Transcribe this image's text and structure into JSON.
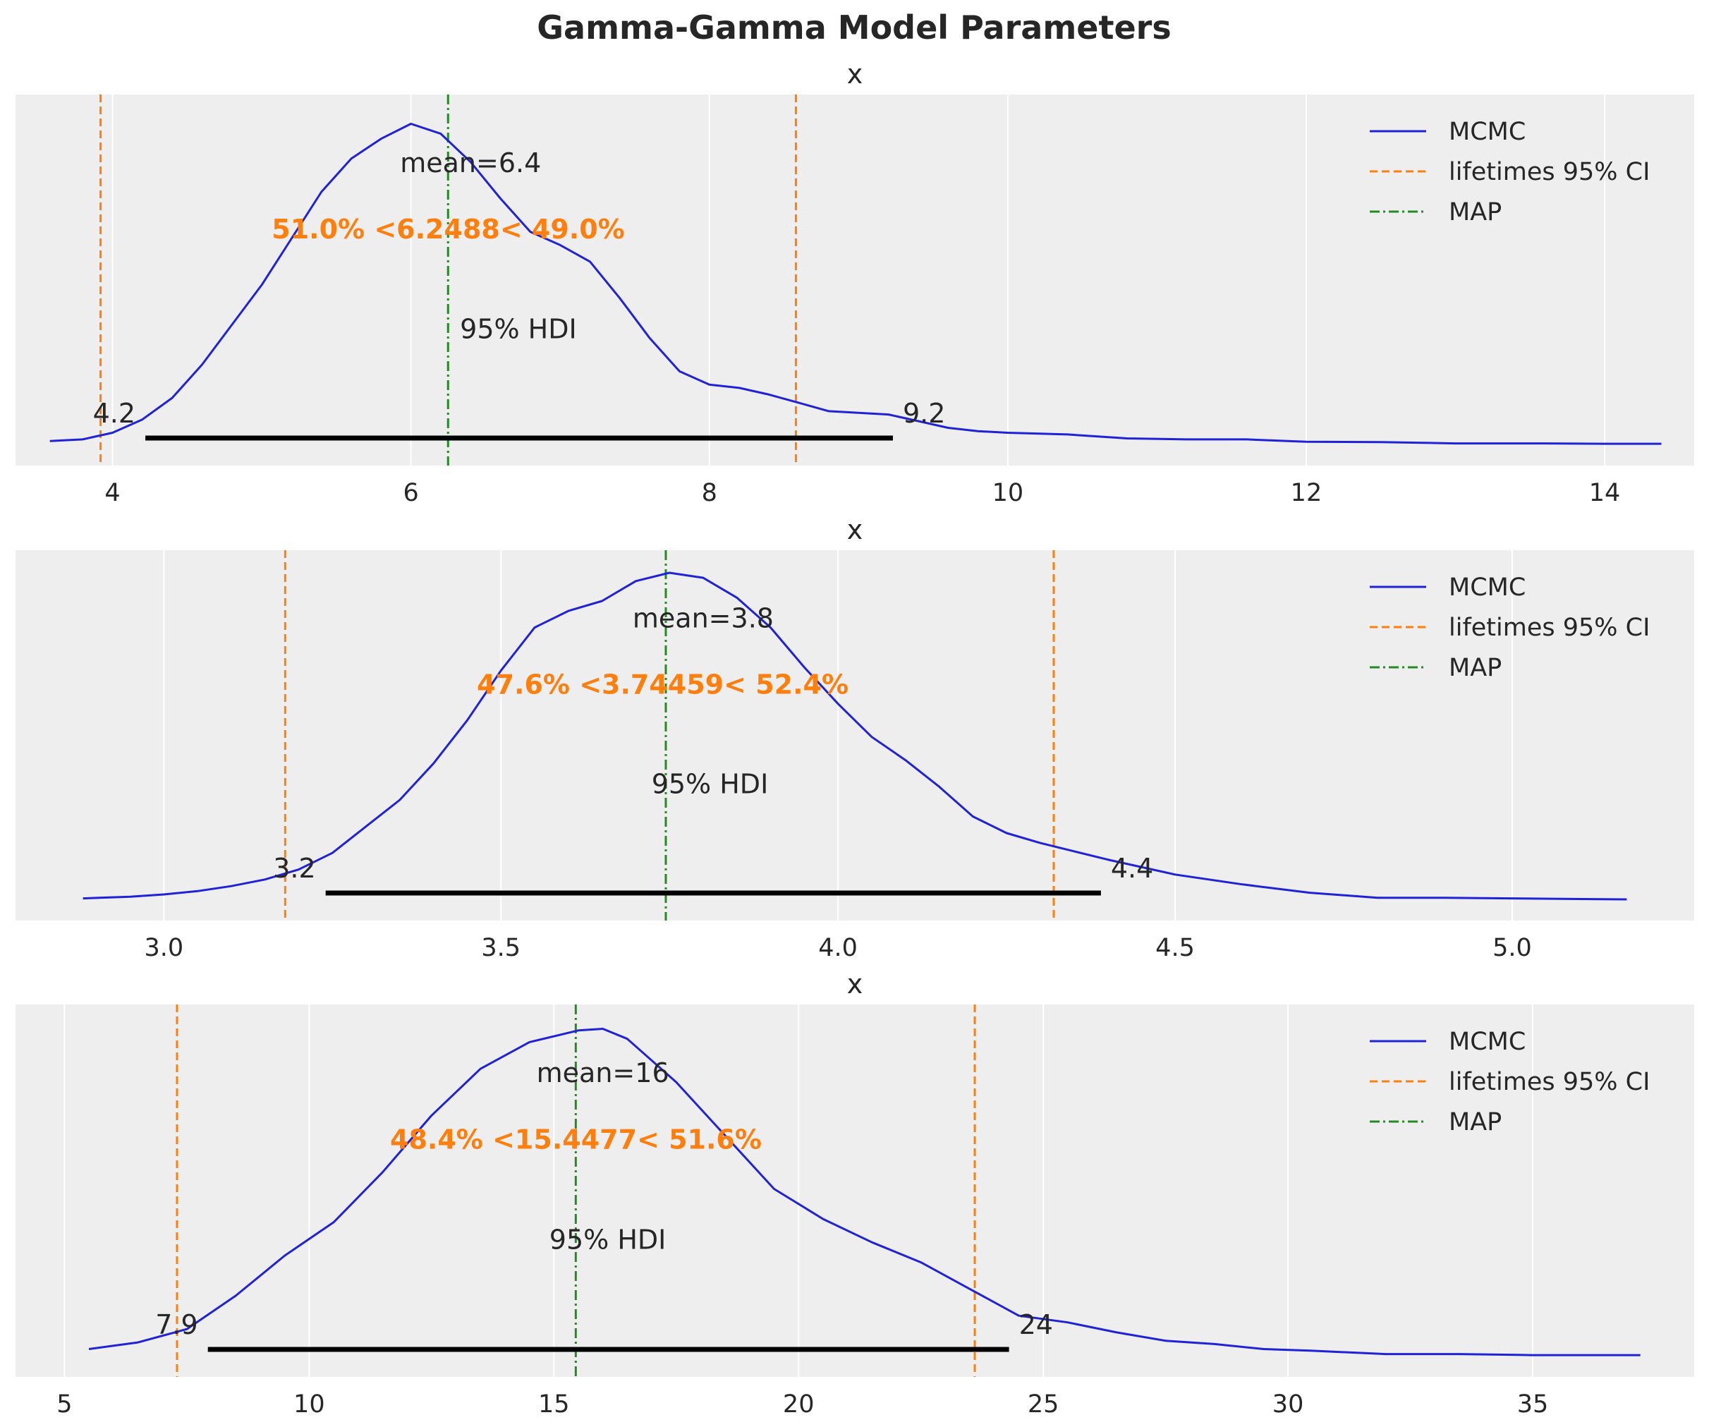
{
  "title": "Gamma-Gamma Model Parameters",
  "colors": {
    "panel_bg": "#eeeeee",
    "grid": "#ffffff",
    "mcmc": "#1f22d6",
    "ci": "#ff7f0e",
    "map": "#228b22",
    "hdi": "#000000",
    "text": "#262626"
  },
  "legend": {
    "mcmc": "MCMC",
    "ci": "lifetimes 95% CI",
    "map": "MAP"
  },
  "chart_data": [
    {
      "type": "line",
      "title": "x",
      "xlim": [
        3.35,
        14.6
      ],
      "xticks": [
        4,
        6,
        8,
        10,
        12,
        14
      ],
      "xtick_labels": [
        "4",
        "6",
        "8",
        "10",
        "12",
        "14"
      ],
      "grid": true,
      "legend_position": "top-right",
      "series": [
        {
          "name": "MCMC",
          "x": [
            3.58,
            3.8,
            4.0,
            4.2,
            4.4,
            4.6,
            4.8,
            5.0,
            5.2,
            5.4,
            5.6,
            5.8,
            6.0,
            6.2,
            6.4,
            6.6,
            6.8,
            7.0,
            7.2,
            7.4,
            7.6,
            7.8,
            8.0,
            8.2,
            8.4,
            8.6,
            8.8,
            9.0,
            9.2,
            9.4,
            9.6,
            9.8,
            10.0,
            10.4,
            10.8,
            11.2,
            11.6,
            12.0,
            12.5,
            13.0,
            13.6,
            14.0,
            14.38
          ],
          "y": [
            0.01,
            0.015,
            0.035,
            0.075,
            0.14,
            0.24,
            0.36,
            0.48,
            0.62,
            0.76,
            0.86,
            0.92,
            0.965,
            0.935,
            0.85,
            0.74,
            0.64,
            0.6,
            0.55,
            0.44,
            0.32,
            0.22,
            0.18,
            0.17,
            0.15,
            0.125,
            0.1,
            0.095,
            0.09,
            0.07,
            0.05,
            0.04,
            0.035,
            0.03,
            0.018,
            0.015,
            0.015,
            0.008,
            0.007,
            0.003,
            0.003,
            0.002,
            0.002
          ]
        }
      ],
      "ylim": [
        0,
        1.0
      ],
      "mean_label": "mean=6.4",
      "mean_label_x": 6.4,
      "mean_label_y": 0.82,
      "prob_label": "51.0% <6.2488< 49.0%",
      "prob_label_x": 6.25,
      "prob_label_y": 0.62,
      "hdi_label": "95% HDI",
      "hdi_label_x": 6.72,
      "hdi_label_y": 0.32,
      "hdi": [
        4.22,
        9.23
      ],
      "hdi_labels": [
        "4.2",
        "9.2"
      ],
      "ci": [
        3.92,
        8.58
      ],
      "map": 6.2488
    },
    {
      "type": "line",
      "title": "x",
      "xlim": [
        2.78,
        5.27
      ],
      "xticks": [
        3.0,
        3.5,
        4.0,
        4.5,
        5.0
      ],
      "xtick_labels": [
        "3.0",
        "3.5",
        "4.0",
        "4.5",
        "5.0"
      ],
      "grid": true,
      "legend_position": "top-right",
      "series": [
        {
          "name": "MCMC",
          "x": [
            2.88,
            2.95,
            3.0,
            3.05,
            3.1,
            3.15,
            3.2,
            3.25,
            3.3,
            3.35,
            3.4,
            3.45,
            3.5,
            3.55,
            3.6,
            3.65,
            3.7,
            3.75,
            3.8,
            3.85,
            3.9,
            3.95,
            4.0,
            4.05,
            4.1,
            4.15,
            4.2,
            4.25,
            4.3,
            4.35,
            4.4,
            4.5,
            4.6,
            4.7,
            4.8,
            4.9,
            5.0,
            5.1,
            5.17
          ],
          "y": [
            0.003,
            0.008,
            0.015,
            0.025,
            0.04,
            0.06,
            0.09,
            0.14,
            0.22,
            0.3,
            0.41,
            0.54,
            0.69,
            0.82,
            0.87,
            0.9,
            0.96,
            0.985,
            0.97,
            0.91,
            0.82,
            0.7,
            0.59,
            0.49,
            0.42,
            0.34,
            0.25,
            0.2,
            0.17,
            0.145,
            0.12,
            0.075,
            0.045,
            0.02,
            0.005,
            0.005,
            0.003,
            0.001,
            0.0
          ]
        }
      ],
      "ylim": [
        0,
        1.0
      ],
      "mean_label": "mean=3.8",
      "mean_label_x": 3.8,
      "mean_label_y": 0.82,
      "prob_label": "47.6% <3.74459< 52.4%",
      "prob_label_x": 3.74,
      "prob_label_y": 0.62,
      "hdi_label": "95% HDI",
      "hdi_label_x": 3.81,
      "hdi_label_y": 0.32,
      "hdi": [
        3.24,
        4.39
      ],
      "hdi_labels": [
        "3.2",
        "4.4"
      ],
      "ci": [
        3.18,
        4.32
      ],
      "map": 3.74459
    },
    {
      "type": "line",
      "title": "x",
      "xlim": [
        4.0,
        38.3
      ],
      "xticks": [
        5,
        10,
        15,
        20,
        25,
        30,
        35
      ],
      "xtick_labels": [
        "5",
        "10",
        "15",
        "20",
        "25",
        "30",
        "35"
      ],
      "grid": true,
      "legend_position": "top-right",
      "series": [
        {
          "name": "MCMC",
          "x": [
            5.5,
            6.5,
            7.5,
            8.5,
            9.5,
            10.5,
            11.5,
            12.5,
            13.5,
            14.5,
            15.5,
            16.0,
            16.5,
            17.5,
            18.5,
            19.5,
            20.5,
            21.5,
            22.5,
            23.5,
            24.5,
            25.5,
            26.5,
            27.5,
            28.5,
            29.5,
            30.5,
            32.0,
            33.5,
            35.0,
            37.2
          ],
          "y": [
            0.02,
            0.04,
            0.08,
            0.18,
            0.3,
            0.4,
            0.55,
            0.72,
            0.86,
            0.94,
            0.975,
            0.98,
            0.95,
            0.82,
            0.66,
            0.5,
            0.41,
            0.34,
            0.28,
            0.2,
            0.12,
            0.1,
            0.07,
            0.045,
            0.035,
            0.02,
            0.015,
            0.005,
            0.005,
            0.002,
            0.002
          ]
        }
      ],
      "ylim": [
        0,
        1.0
      ],
      "mean_label": "mean=16",
      "mean_label_x": 16.0,
      "mean_label_y": 0.82,
      "prob_label": "48.4% <15.4477< 51.6%",
      "prob_label_x": 15.45,
      "prob_label_y": 0.62,
      "hdi_label": "95% HDI",
      "hdi_label_x": 16.1,
      "hdi_label_y": 0.32,
      "hdi": [
        7.93,
        24.3
      ],
      "hdi_labels": [
        "7.9",
        "24"
      ],
      "ci": [
        7.3,
        23.6
      ],
      "map": 15.4477
    }
  ]
}
